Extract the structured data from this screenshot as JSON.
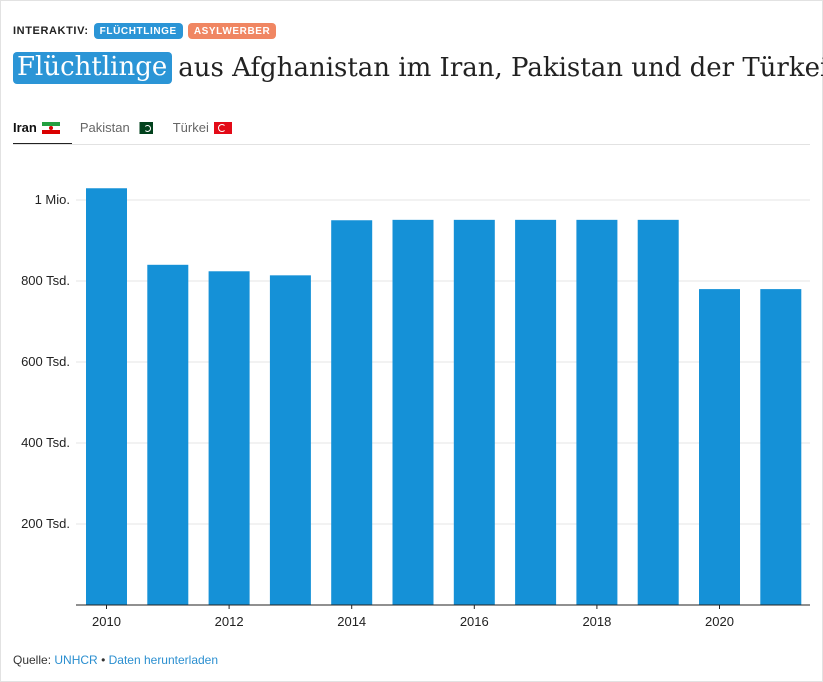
{
  "kicker": {
    "label": "INTERAKTIV:",
    "tags": [
      "FLÜCHTLINGE",
      "ASYLWERBER"
    ]
  },
  "headline": {
    "highlight": "Flüchtlinge",
    "rest": "aus Afghanistan im Iran, Pakistan und der Türkei"
  },
  "tabs": [
    {
      "label": "Iran",
      "icon": "flag-iran-icon",
      "active": true
    },
    {
      "label": "Pakistan",
      "icon": "flag-pakistan-icon",
      "active": false
    },
    {
      "label": "Türkei",
      "icon": "flag-turkey-icon",
      "active": false
    }
  ],
  "chart_data": {
    "type": "bar",
    "x": [
      2010,
      2011,
      2012,
      2013,
      2014,
      2015,
      2016,
      2017,
      2018,
      2019,
      2020,
      2021
    ],
    "values": [
      1029000,
      840000,
      824000,
      814000,
      950000,
      951000,
      951000,
      951000,
      951000,
      951000,
      780000,
      780000
    ],
    "x_tick_labels": [
      "2010",
      "2012",
      "2014",
      "2016",
      "2018",
      "2020"
    ],
    "y_ticks": [
      200000,
      400000,
      600000,
      800000,
      1000000
    ],
    "y_tick_labels": [
      "200 Tsd.",
      "400 Tsd.",
      "600 Tsd.",
      "800 Tsd.",
      "1 Mio."
    ],
    "ylim": [
      0,
      1050000
    ],
    "color": "#1591d7",
    "grid": true
  },
  "source": {
    "label": "Quelle:",
    "link": "UNHCR",
    "separator": "•",
    "download": "Daten herunterladen"
  },
  "colors": {
    "accent_blue": "#2b95d6",
    "accent_orange": "#f08662",
    "bar": "#1591d7"
  }
}
